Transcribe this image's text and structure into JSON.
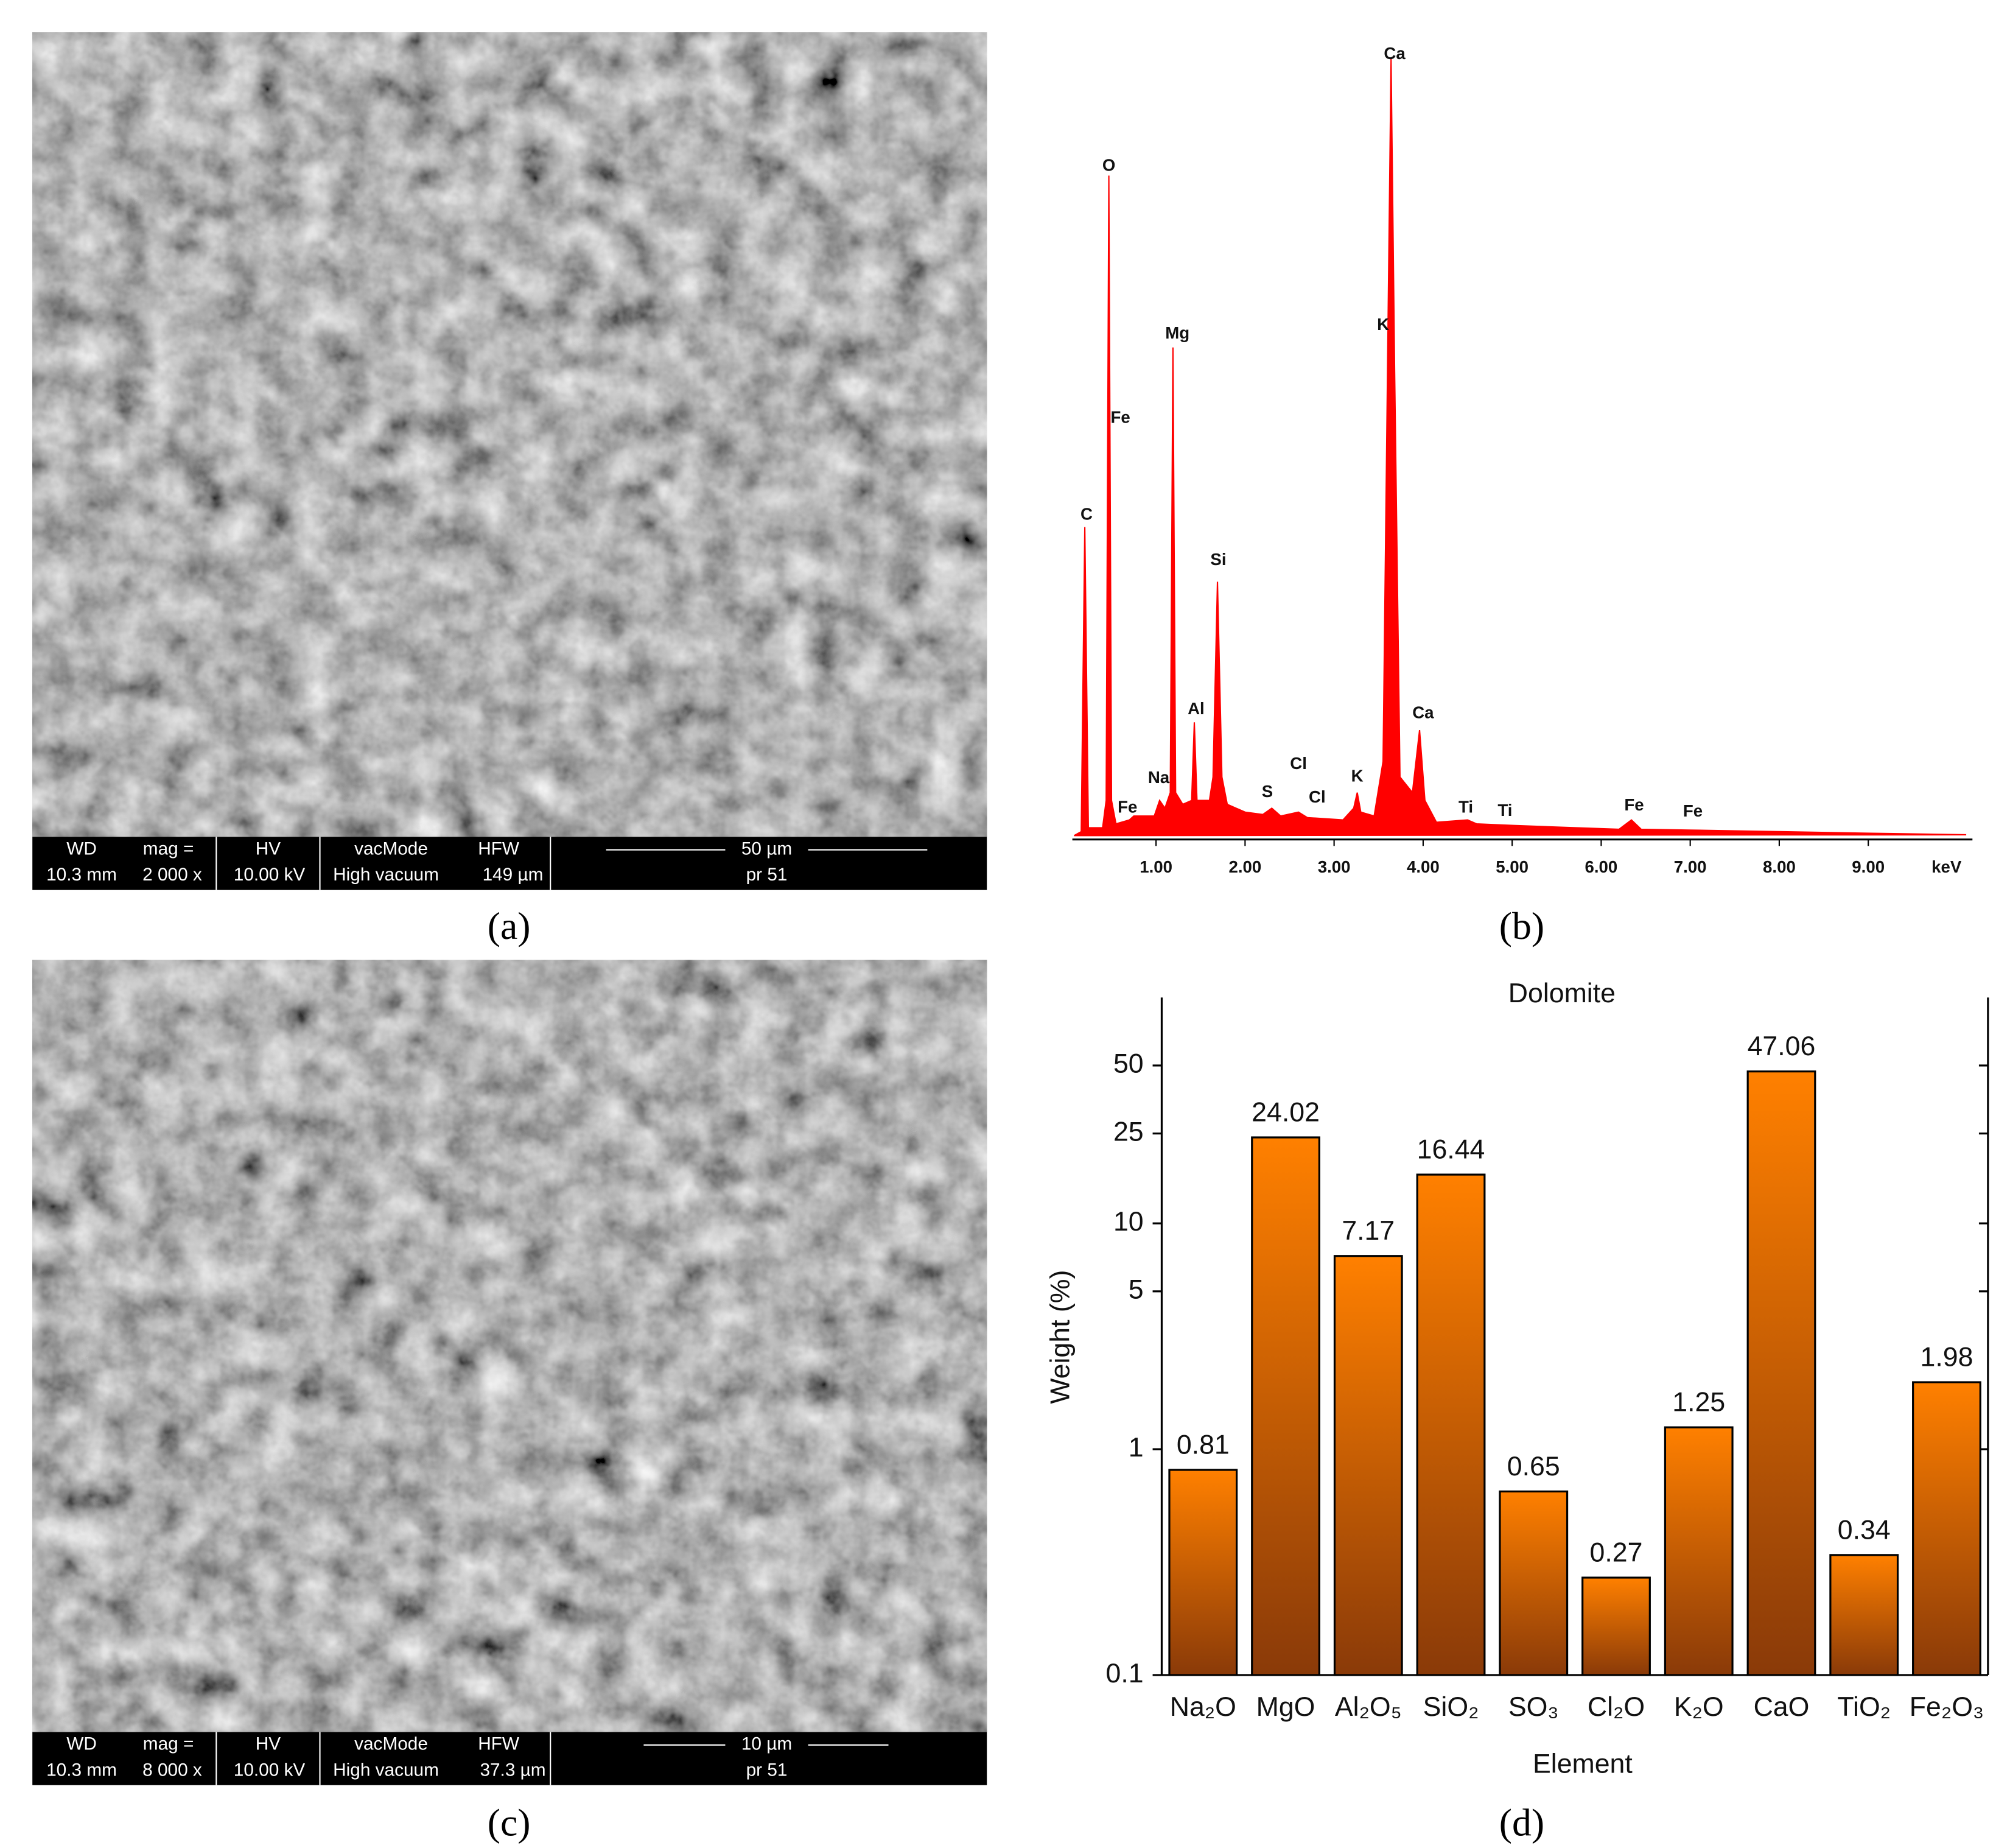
{
  "panel_labels": [
    "(a)",
    "(b)",
    "(c)",
    "(d)"
  ],
  "sem_images": [
    {
      "headers": [
        "WD",
        "mag =",
        "HV",
        "vacMode",
        "HFW"
      ],
      "values": [
        "10.3 mm",
        "2 000 x",
        "10.00 kV",
        "High vacuum",
        "149 µm"
      ],
      "scale_bar": "50 µm",
      "sample": "pr 51"
    },
    {
      "headers": [
        "WD",
        "mag =",
        "HV",
        "vacMode",
        "HFW"
      ],
      "values": [
        "10.3 mm",
        "8 000 x",
        "10.00 kV",
        "High vacuum",
        "37.3 µm"
      ],
      "scale_bar": "10 µm",
      "sample": "pr 51"
    }
  ],
  "chart_data": [
    {
      "type": "area",
      "color": "#ff0000",
      "xlabel": "keV",
      "xlim": [
        0.06,
        10.17
      ],
      "ylim": [
        0,
        105
      ],
      "xticks": [
        {
          "value": 1,
          "label": "1.00"
        },
        {
          "value": 2,
          "label": "2.00"
        },
        {
          "value": 3,
          "label": "3.00"
        },
        {
          "value": 4,
          "label": "4.00"
        },
        {
          "value": 5,
          "label": "5.00"
        },
        {
          "value": 6,
          "label": "6.00"
        },
        {
          "value": 7,
          "label": "7.00"
        },
        {
          "value": 8,
          "label": "8.00"
        },
        {
          "value": 9,
          "label": "9.00"
        }
      ],
      "x": [
        0.08,
        0.16,
        0.2,
        0.24,
        0.4,
        0.44,
        0.47,
        0.5,
        0.55,
        0.7,
        0.75,
        0.98,
        1.04,
        1.1,
        1.16,
        1.19,
        1.22,
        1.3,
        1.4,
        1.43,
        1.46,
        1.6,
        1.64,
        1.69,
        1.74,
        1.8,
        2.0,
        2.2,
        2.3,
        2.4,
        2.6,
        2.7,
        3.1,
        3.22,
        3.26,
        3.3,
        3.45,
        3.55,
        3.6,
        3.64,
        3.68,
        3.74,
        3.88,
        3.96,
        4.02,
        4.15,
        4.5,
        4.6,
        5.0,
        6.2,
        6.34,
        6.45,
        7.0,
        8.0,
        9.0,
        10.1
      ],
      "values": [
        0.5,
        1,
        40,
        1.5,
        1.5,
        5,
        85,
        5,
        2,
        2.5,
        3,
        3,
        5,
        4,
        6,
        63,
        6,
        4.5,
        5,
        15,
        5,
        5,
        8,
        33,
        8,
        4.5,
        3.5,
        3.2,
        4,
        3,
        3.5,
        2.8,
        2.5,
        4,
        6,
        3.5,
        3,
        10,
        60,
        100,
        60,
        8,
        6,
        14,
        5,
        2.2,
        2.5,
        2,
        1.8,
        1.3,
        2.5,
        1.3,
        1.2,
        1,
        0.8,
        0.6
      ],
      "annotations": [
        {
          "text": "C",
          "x": 0.22,
          "y": 41.5
        },
        {
          "text": "O",
          "x": 0.47,
          "y": 86.2
        },
        {
          "text": "Fe",
          "x": 0.6,
          "y": 53.9
        },
        {
          "text": "Mg",
          "x": 1.24,
          "y": 64.7
        },
        {
          "text": "Al",
          "x": 1.45,
          "y": 16.6
        },
        {
          "text": "Na",
          "x": 1.03,
          "y": 7.8
        },
        {
          "text": "Fe",
          "x": 0.68,
          "y": 4
        },
        {
          "text": "Si",
          "x": 1.7,
          "y": 35.7
        },
        {
          "text": "S",
          "x": 2.25,
          "y": 6
        },
        {
          "text": "Cl",
          "x": 2.6,
          "y": 9.6
        },
        {
          "text": "Cl",
          "x": 2.81,
          "y": 5.3
        },
        {
          "text": "K",
          "x": 3.26,
          "y": 8
        },
        {
          "text": "Ca",
          "x": 3.68,
          "y": 100.5
        },
        {
          "text": "K",
          "x": 3.55,
          "y": 65.8
        },
        {
          "text": "Ca",
          "x": 4.0,
          "y": 16.1
        },
        {
          "text": "Ti",
          "x": 4.48,
          "y": 4
        },
        {
          "text": "Ti",
          "x": 4.92,
          "y": 3.6
        },
        {
          "text": "Fe",
          "x": 6.37,
          "y": 4.3
        },
        {
          "text": "Fe",
          "x": 7.03,
          "y": 3.5
        }
      ]
    },
    {
      "type": "bar",
      "title": "Dolomite",
      "xlabel": "Element",
      "ylabel": "Weight (%)",
      "color": "#ff8000",
      "gradient_to": "#8a3a08",
      "categories": [
        "Na₂O",
        "MgO",
        "Al₂O₅",
        "SiO₂",
        "SO₃",
        "Cl₂O",
        "K₂O",
        "CaO",
        "TiO₂",
        "Fe₂O₃"
      ],
      "values": [
        0.81,
        24.02,
        7.17,
        16.44,
        0.65,
        0.27,
        1.25,
        47.06,
        0.34,
        1.98
      ],
      "log_scale": true,
      "ylim": [
        0.1,
        100
      ],
      "yticks": [
        0.1,
        1,
        5,
        10,
        25,
        50
      ]
    }
  ]
}
